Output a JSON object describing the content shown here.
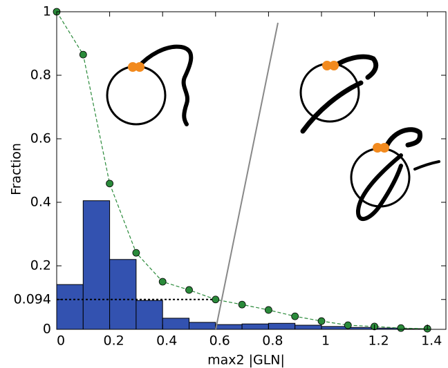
{
  "chart_data": {
    "type": "histogram",
    "x_label": "max2 |GLN|",
    "y_label": "Fraction",
    "bins": [
      0,
      0.1,
      0.2,
      0.3,
      0.4,
      0.5,
      0.6,
      0.7,
      0.8,
      0.9,
      1.0,
      1.1,
      1.2,
      1.3,
      1.4
    ],
    "values": [
      0.141,
      0.405,
      0.22,
      0.091,
      0.035,
      0.022,
      0.015,
      0.017,
      0.019,
      0.013,
      0.009,
      0.006,
      0.004,
      0.002
    ],
    "color": "#3352b0",
    "xlim": [
      0,
      1.47
    ],
    "ylim": [
      0,
      1
    ],
    "xticks": [
      0,
      0.2,
      0.4,
      0.6,
      0.8,
      1.0,
      1.2,
      1.4
    ],
    "yticks": [
      0,
      0.094,
      0.2,
      0.4,
      0.6,
      0.8,
      1
    ],
    "overlay": {
      "type": "line",
      "color": "#2a8a3a",
      "x": [
        0,
        0.1,
        0.2,
        0.3,
        0.4,
        0.5,
        0.6,
        0.7,
        0.8,
        0.9,
        1.0,
        1.1,
        1.2,
        1.3,
        1.4
      ],
      "values": [
        1.0,
        0.865,
        0.459,
        0.241,
        0.15,
        0.124,
        0.094,
        0.078,
        0.061,
        0.041,
        0.026,
        0.013,
        0.009,
        0.004,
        0.002
      ]
    }
  }
}
